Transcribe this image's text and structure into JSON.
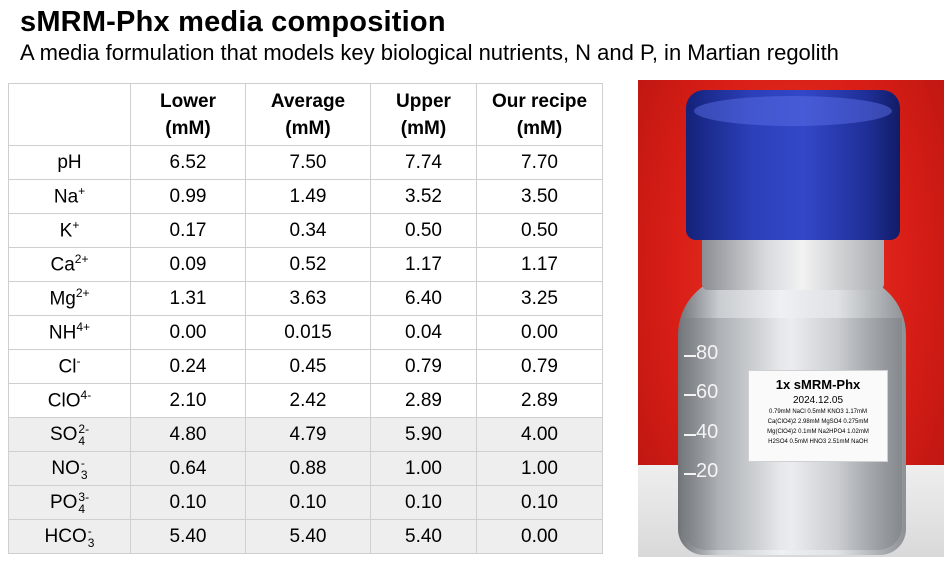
{
  "header": {
    "title": "sMRM-Phx media composition",
    "subtitle": "A media formulation that models key biological nutrients, N and P, in Martian regolith"
  },
  "table": {
    "headers": [
      {
        "l1": "Lower",
        "l2": "(mM)"
      },
      {
        "l1": "Average",
        "l2": "(mM)"
      },
      {
        "l1": "Upper",
        "l2": "(mM)"
      },
      {
        "l1": "Our recipe",
        "l2": "(mM)"
      }
    ],
    "rows": [
      {
        "base": "pH",
        "sup": "",
        "sub": "",
        "values": [
          "6.52",
          "7.50",
          "7.74",
          "7.70"
        ]
      },
      {
        "base": "Na",
        "sup": "+",
        "sub": "",
        "values": [
          "0.99",
          "1.49",
          "3.52",
          "3.50"
        ]
      },
      {
        "base": "K",
        "sup": "+",
        "sub": "",
        "values": [
          "0.17",
          "0.34",
          "0.50",
          "0.50"
        ]
      },
      {
        "base": "Ca",
        "sup": "2+",
        "sub": "",
        "values": [
          "0.09",
          "0.52",
          "1.17",
          "1.17"
        ]
      },
      {
        "base": "Mg",
        "sup": "2+",
        "sub": "",
        "values": [
          "1.31",
          "3.63",
          "6.40",
          "3.25"
        ]
      },
      {
        "base": "NH",
        "sup": "4+",
        "sub": "",
        "values": [
          "0.00",
          "0.015",
          "0.04",
          "0.00"
        ]
      },
      {
        "base": "Cl",
        "sup": "-",
        "sub": "",
        "values": [
          "0.24",
          "0.45",
          "0.79",
          "0.79"
        ]
      },
      {
        "base": "ClO",
        "sup": "4-",
        "sub": "",
        "values": [
          "2.10",
          "2.42",
          "2.89",
          "2.89"
        ]
      },
      {
        "base": "SO",
        "sup": "2-",
        "sub": "4",
        "values": [
          "4.80",
          "4.79",
          "5.90",
          "4.00"
        ]
      },
      {
        "base": "NO",
        "sup": "-",
        "sub": "3",
        "values": [
          "0.64",
          "0.88",
          "1.00",
          "1.00"
        ]
      },
      {
        "base": "PO",
        "sup": "3-",
        "sub": "4",
        "values": [
          "0.10",
          "0.10",
          "0.10",
          "0.10"
        ]
      },
      {
        "base": "HCO",
        "sup": "-",
        "sub": "3",
        "values": [
          "5.40",
          "5.40",
          "5.40",
          "0.00"
        ]
      }
    ]
  },
  "photo": {
    "graduations": [
      "80",
      "60",
      "40",
      "20"
    ],
    "label_title": "1x sMRM-Phx",
    "label_date": "2024.12.05",
    "label_lines": [
      "0.79mM NaCl  0.5mM KNO3  1.17mM",
      "Ca(ClO4)2  2.98mM MgSO4  0.275mM",
      "Mg(ClO4)2  0.1mM Na2HPO4  1.02mM",
      "H2SO4  0.5mM HNO3  2.51mM NaOH"
    ]
  }
}
